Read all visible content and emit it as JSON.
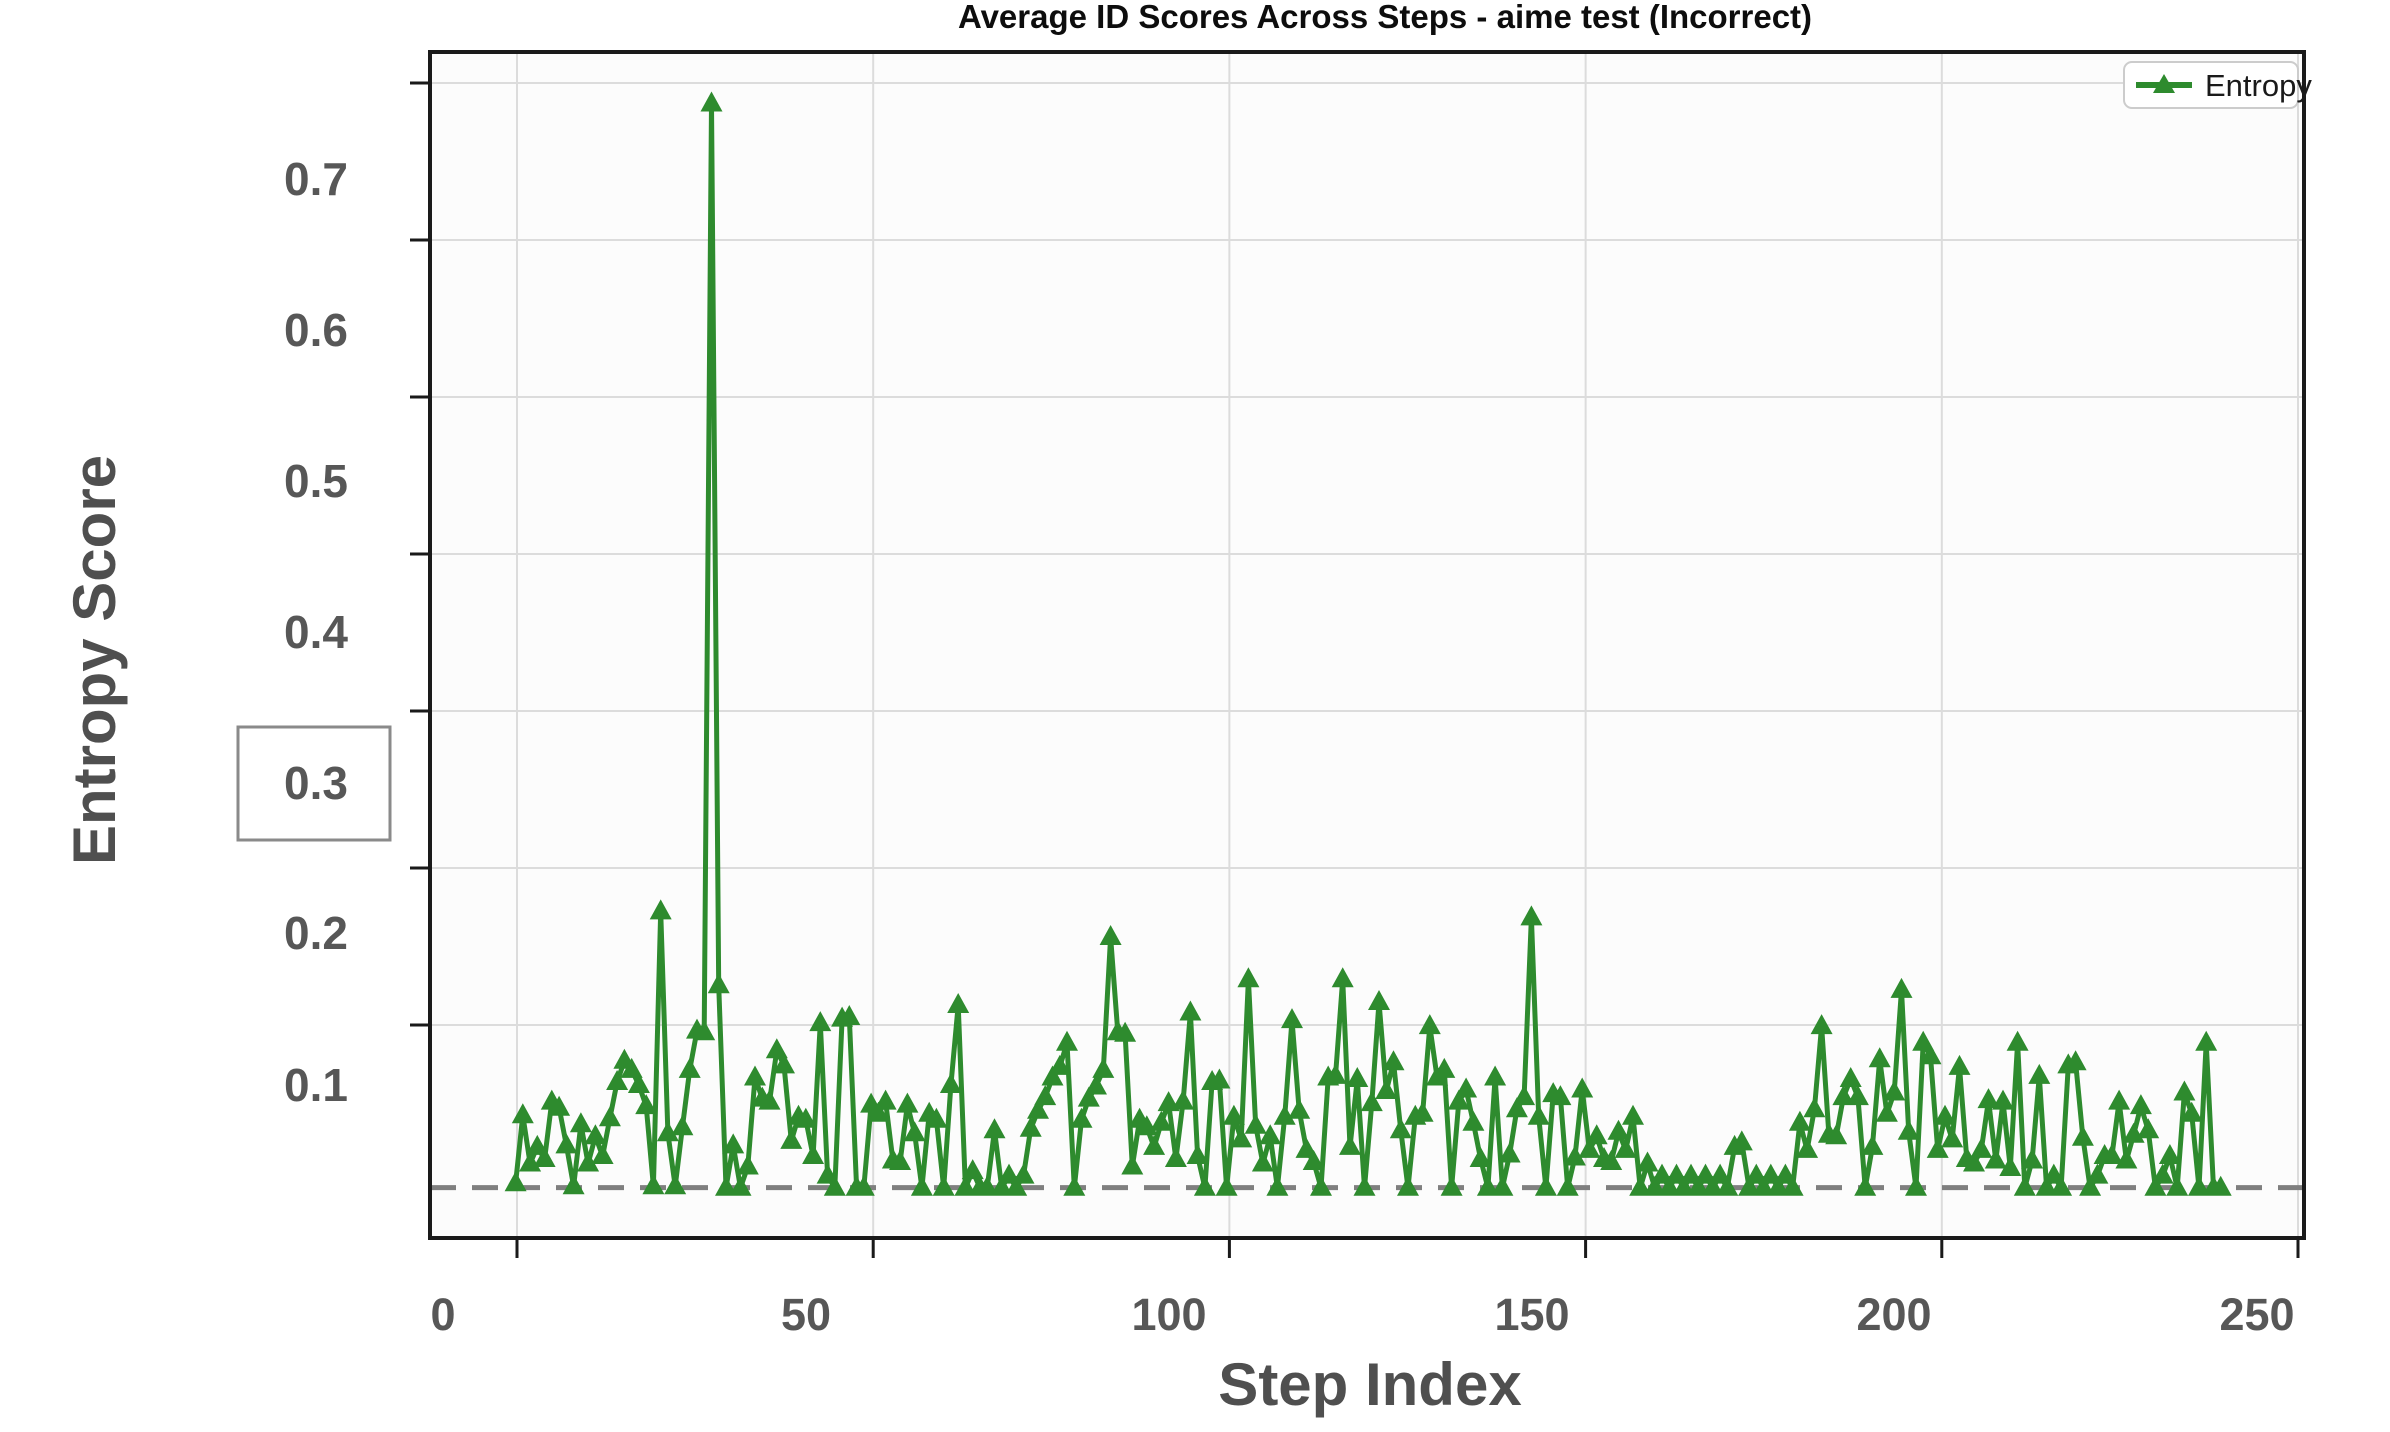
{
  "title": "Average ID Scores Across Steps - aime test (Incorrect)",
  "legend": {
    "entries": [
      {
        "label": "Entropy",
        "marker": "triangle-up",
        "color": "#2e8b2e"
      }
    ]
  },
  "axes": {
    "x": {
      "label": "Step Index",
      "tick_labels": [
        "0",
        "50",
        "100",
        "150",
        "200",
        "250"
      ],
      "tick_values": [
        0,
        50,
        100,
        150,
        200,
        250
      ],
      "lim": [
        -2,
        257
      ]
    },
    "y": {
      "label": "Entropy Score",
      "tick_labels": [
        "0.1",
        "0.2",
        "0.3",
        "0.4",
        "0.5",
        "0.6",
        "0.7"
      ],
      "tick_values": [
        0.1,
        0.2,
        0.3,
        0.4,
        0.5,
        0.6,
        0.7
      ],
      "lim": [
        -0.002,
        0.785
      ],
      "boxed_tick_label": "0.3"
    }
  },
  "colors": {
    "line": "#2e8b2e",
    "marker": "#2e8b2e",
    "baseline_dash": "#7f7f7f",
    "grid": "#dcdcdc",
    "spine": "#1a1a1a",
    "tick_text": "#575757",
    "plot_bg": "#fcfcfc",
    "legend_border": "#cccccc"
  },
  "chart_data": {
    "type": "line",
    "title": "Average ID Scores Across Steps - aime test (Incorrect)",
    "xlabel": "Step Index",
    "ylabel": "Entropy Score",
    "xlim": [
      -2,
      257
    ],
    "ylim": [
      -0.002,
      0.785
    ],
    "grid": true,
    "legend_position": "upper right",
    "baseline": {
      "value": 0.032,
      "style": "dashed",
      "color": "#7f7f7f"
    },
    "series": [
      {
        "name": "Entropy",
        "marker": "triangle-up",
        "color": "#2e8b2e",
        "x_start": 10,
        "x_step": 1,
        "values": [
          0.035,
          0.08,
          0.048,
          0.059,
          0.051,
          0.089,
          0.085,
          0.06,
          0.033,
          0.074,
          0.048,
          0.066,
          0.053,
          0.078,
          0.102,
          0.116,
          0.11,
          0.1,
          0.086,
          0.033,
          0.215,
          0.068,
          0.033,
          0.072,
          0.11,
          0.136,
          0.135,
          0.75,
          0.166,
          0.032,
          0.06,
          0.032,
          0.046,
          0.105,
          0.091,
          0.089,
          0.123,
          0.113,
          0.063,
          0.079,
          0.077,
          0.053,
          0.141,
          0.04,
          0.032,
          0.144,
          0.145,
          0.032,
          0.032,
          0.087,
          0.081,
          0.089,
          0.05,
          0.049,
          0.087,
          0.068,
          0.032,
          0.081,
          0.077,
          0.032,
          0.1,
          0.153,
          0.032,
          0.043,
          0.032,
          0.032,
          0.07,
          0.032,
          0.04,
          0.032,
          0.04,
          0.071,
          0.083,
          0.092,
          0.105,
          0.112,
          0.128,
          0.032,
          0.077,
          0.091,
          0.099,
          0.11,
          0.198,
          0.135,
          0.134,
          0.046,
          0.077,
          0.072,
          0.059,
          0.075,
          0.088,
          0.051,
          0.089,
          0.148,
          0.053,
          0.032,
          0.102,
          0.103,
          0.032,
          0.079,
          0.064,
          0.17,
          0.073,
          0.048,
          0.066,
          0.032,
          0.079,
          0.143,
          0.083,
          0.057,
          0.049,
          0.032,
          0.105,
          0.106,
          0.17,
          0.059,
          0.104,
          0.032,
          0.088,
          0.155,
          0.096,
          0.115,
          0.07,
          0.032,
          0.079,
          0.081,
          0.139,
          0.105,
          0.11,
          0.032,
          0.089,
          0.097,
          0.075,
          0.051,
          0.032,
          0.105,
          0.032,
          0.054,
          0.084,
          0.092,
          0.211,
          0.079,
          0.032,
          0.094,
          0.092,
          0.032,
          0.052,
          0.097,
          0.057,
          0.066,
          0.051,
          0.049,
          0.069,
          0.057,
          0.079,
          0.032,
          0.048,
          0.032,
          0.04,
          0.032,
          0.04,
          0.032,
          0.04,
          0.032,
          0.04,
          0.032,
          0.04,
          0.032,
          0.059,
          0.062,
          0.032,
          0.04,
          0.032,
          0.04,
          0.032,
          0.04,
          0.032,
          0.075,
          0.057,
          0.084,
          0.139,
          0.067,
          0.066,
          0.092,
          0.104,
          0.092,
          0.032,
          0.059,
          0.117,
          0.081,
          0.095,
          0.163,
          0.069,
          0.032,
          0.128,
          0.119,
          0.057,
          0.079,
          0.064,
          0.112,
          0.051,
          0.048,
          0.057,
          0.09,
          0.05,
          0.089,
          0.045,
          0.128,
          0.032,
          0.05,
          0.106,
          0.032,
          0.04,
          0.032,
          0.113,
          0.115,
          0.065,
          0.032,
          0.04,
          0.053,
          0.053,
          0.089,
          0.05,
          0.067,
          0.086,
          0.07,
          0.032,
          0.04,
          0.053,
          0.032,
          0.095,
          0.081,
          0.032,
          0.128,
          0.032,
          0.032
        ]
      }
    ]
  }
}
